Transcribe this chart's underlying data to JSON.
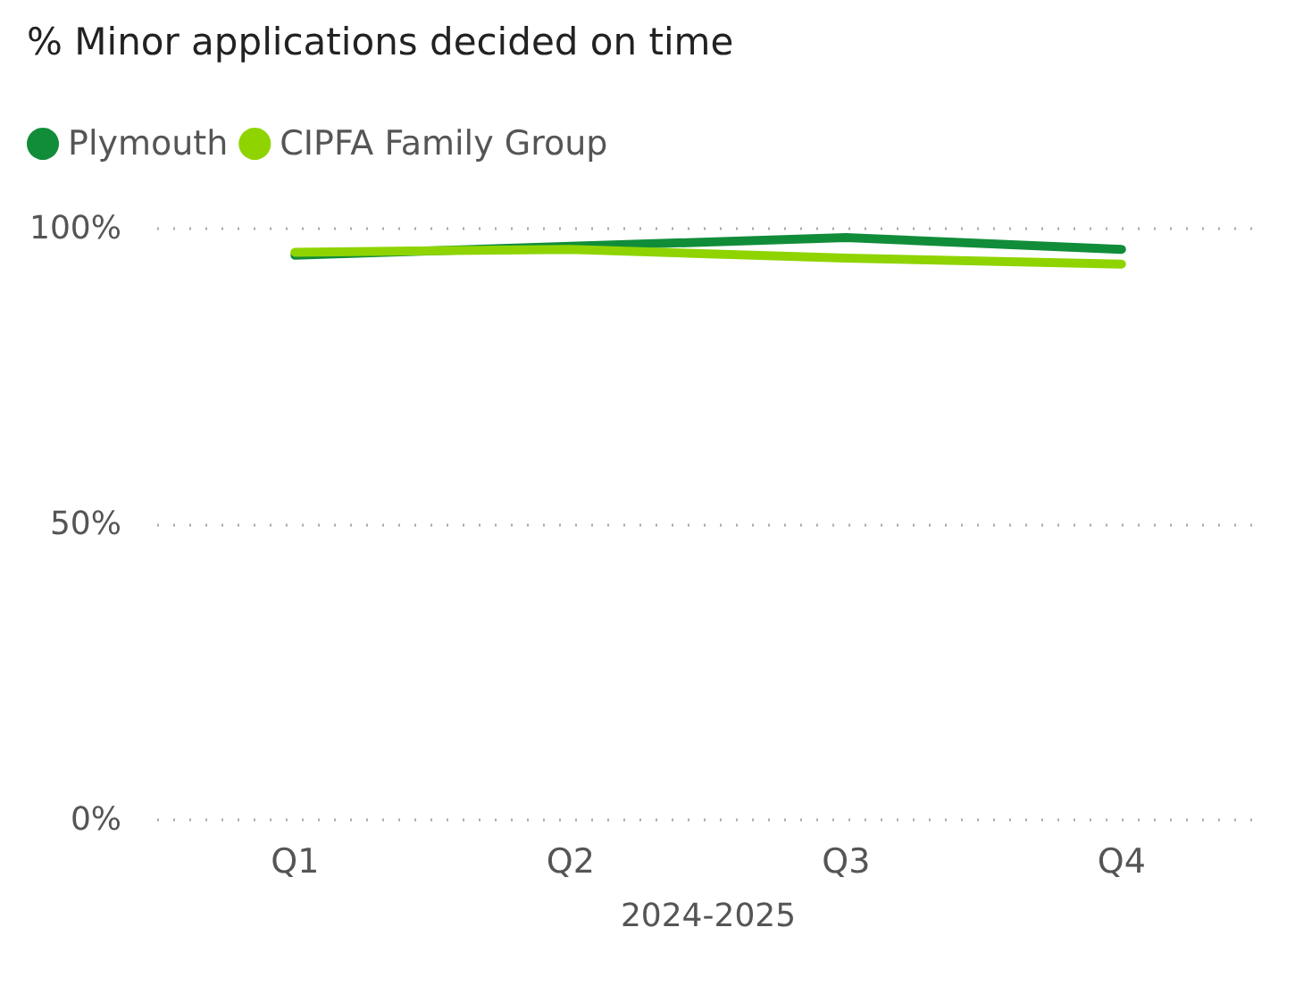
{
  "chart_data": {
    "type": "line",
    "title": "% Minor applications decided on time",
    "xlabel": "2024-2025",
    "categories": [
      "Q1",
      "Q2",
      "Q3",
      "Q4"
    ],
    "series": [
      {
        "name": "Plymouth",
        "color": "#118d3a",
        "values": [
          95.5,
          97,
          98.5,
          96.5
        ]
      },
      {
        "name": "CIPFA Family Group",
        "color": "#8fd400",
        "values": [
          96,
          96.5,
          95,
          94
        ]
      }
    ],
    "ylim": [
      0,
      100
    ],
    "yticks": [
      {
        "value": 0,
        "label": "0%"
      },
      {
        "value": 50,
        "label": "50%"
      },
      {
        "value": 100,
        "label": "100%"
      }
    ],
    "grid": "y",
    "legend": "top left",
    "marker": "none",
    "line_style": "solid"
  }
}
